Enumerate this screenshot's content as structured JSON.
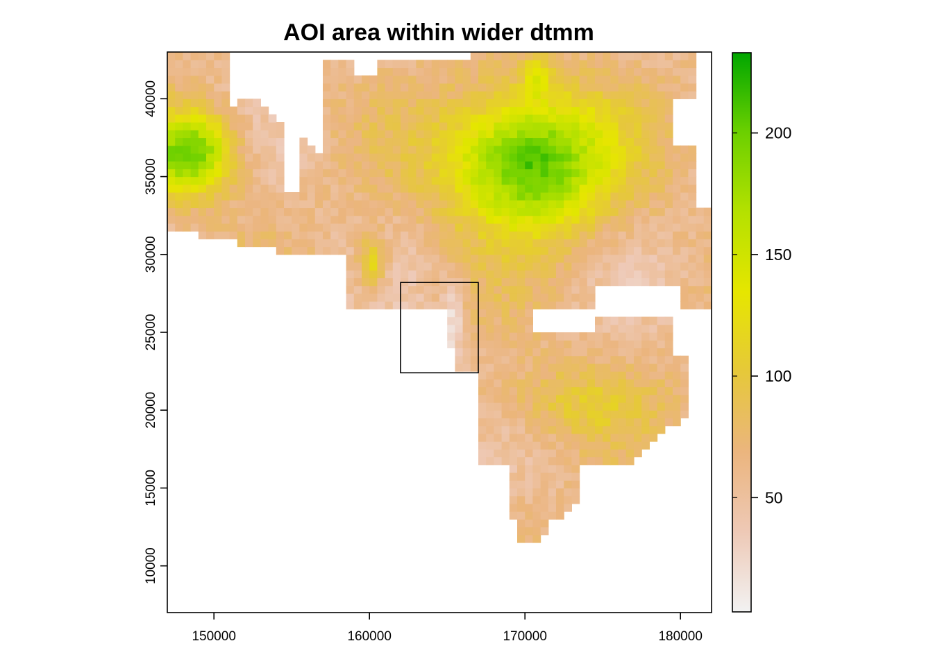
{
  "chart_data": {
    "type": "heatmap",
    "title": "AOI area within wider dtmm",
    "xlabel": "",
    "ylabel": "",
    "xlim": [
      147000,
      182000
    ],
    "ylim": [
      7000,
      43000
    ],
    "x_ticks": [
      150000,
      160000,
      170000,
      180000
    ],
    "y_ticks": [
      10000,
      15000,
      20000,
      25000,
      30000,
      35000,
      40000
    ],
    "legend": {
      "position": "right",
      "range": [
        3,
        233
      ],
      "ticks": [
        50,
        100,
        150,
        200
      ]
    },
    "colors": {
      "low": "#f2f2f2",
      "stops": [
        "#f2f2f2",
        "#eec9b6",
        "#ebb57e",
        "#e6c83a",
        "#e6e600",
        "#b5e100",
        "#6cd000",
        "#00a600"
      ],
      "frame": "#000000"
    },
    "aoi_box": {
      "xmin": 162000,
      "xmax": 167000,
      "ymin": 22400,
      "ymax": 28200
    }
  }
}
